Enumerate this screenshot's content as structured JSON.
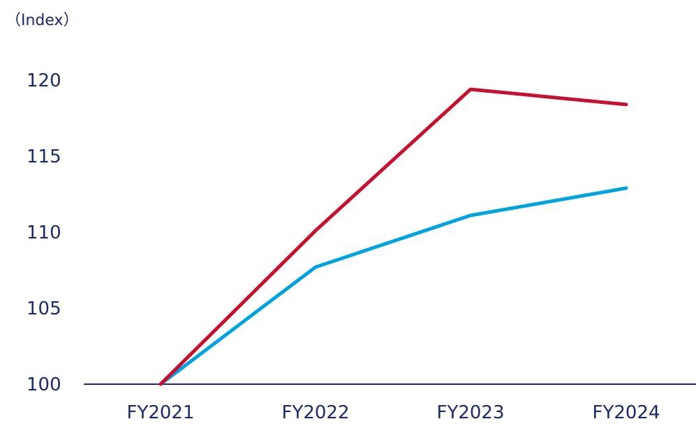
{
  "chart_data": {
    "type": "line",
    "unit_label": "（Index）",
    "categories": [
      "FY2021",
      "FY2022",
      "FY2023",
      "FY2024"
    ],
    "yticks": [
      "100",
      "105",
      "110",
      "115",
      "120"
    ],
    "ylim": [
      100,
      120
    ],
    "grid": false,
    "series": [
      {
        "color": "#c8102e",
        "values": [
          100,
          110.1,
          119.4,
          118.4
        ]
      },
      {
        "color": "#00a3e0",
        "values": [
          100,
          107.7,
          111.1,
          112.9
        ]
      }
    ],
    "axis_color": "#1b2a6b"
  }
}
